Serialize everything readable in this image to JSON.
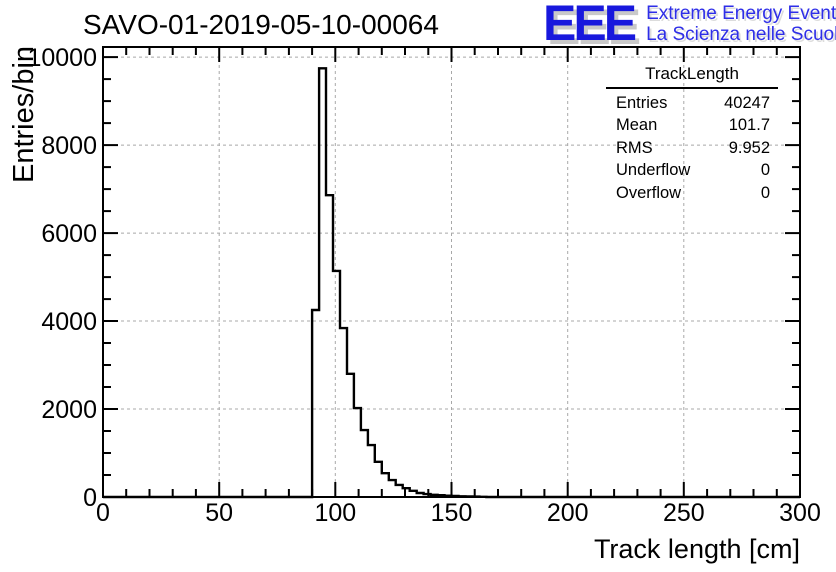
{
  "page": {
    "title": "SAVO-01-2019-05-10-00064"
  },
  "logo": {
    "acronym": "EEE",
    "line1": "Extreme Energy Events",
    "line2": "La Scienza nelle Scuole",
    "acronym_color": "#1818dd",
    "subtitle_color": "#2e2ee8",
    "shadow_color": "#c9c9c9"
  },
  "stats": {
    "title": "TrackLength",
    "rows": [
      {
        "label": "Entries",
        "value": "40247"
      },
      {
        "label": "Mean",
        "value": "101.7"
      },
      {
        "label": "RMS",
        "value": "9.952"
      },
      {
        "label": "Underflow",
        "value": "0"
      },
      {
        "label": "Overflow",
        "value": "0"
      }
    ]
  },
  "chart_data": {
    "type": "bar",
    "title": "SAVO-01-2019-05-10-00064",
    "xlabel": "Track length [cm]",
    "ylabel": "Entries/bin",
    "xlim": [
      0,
      300
    ],
    "ylim": [
      0,
      10230
    ],
    "x_major_ticks": [
      0,
      50,
      100,
      150,
      200,
      250,
      300
    ],
    "x_minor_step": 10,
    "y_major_ticks": [
      0,
      2000,
      4000,
      6000,
      8000,
      10000
    ],
    "y_minor_step": 500,
    "grid": "dashed-on-major-ticks",
    "grid_color": "#a8a8a8",
    "line_color": "#000000",
    "legend_position": "none",
    "histogram": {
      "name": "TrackLength",
      "bin_start": 90,
      "bin_width": 3,
      "values": [
        4250,
        9745,
        6860,
        5140,
        3840,
        2800,
        2020,
        1520,
        1180,
        800,
        540,
        385,
        275,
        200,
        140,
        90,
        65,
        50,
        40,
        30,
        22,
        16,
        12,
        8,
        4
      ]
    }
  }
}
